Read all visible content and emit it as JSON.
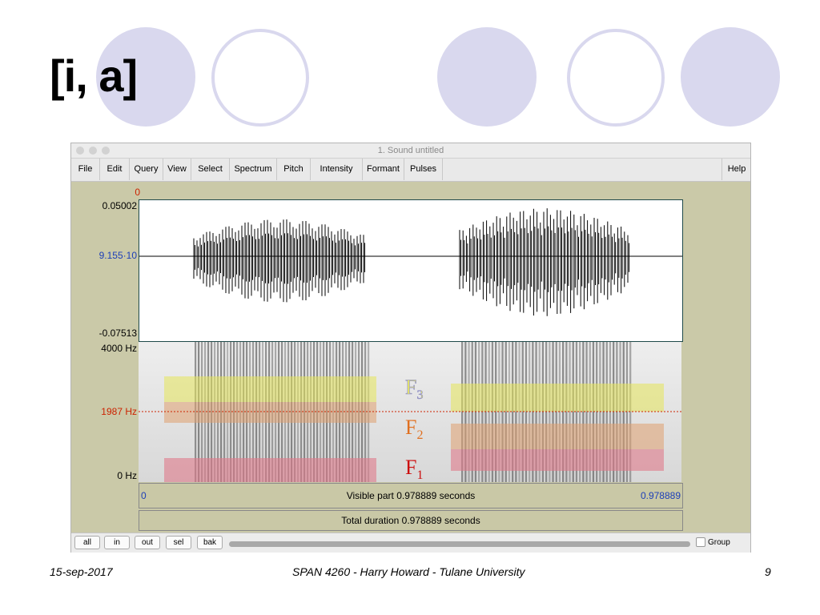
{
  "slide": {
    "title": "[i, a]",
    "footer_left": "15-sep-2017",
    "footer_center": "SPAN 4260 - Harry Howard - Tulane University",
    "footer_right": "9"
  },
  "window": {
    "title": "1. Sound untitled",
    "menu": [
      "File",
      "Edit",
      "Query",
      "View",
      "Select",
      "Spectrum",
      "Pitch",
      "Intensity",
      "Formant",
      "Pulses",
      "Help"
    ],
    "time_cursor": "0",
    "waveform": {
      "max": "0.05002",
      "mid": "9.155·10",
      "min": "-0.07513"
    },
    "spectrogram": {
      "top": "4000 Hz",
      "cursor": "1987 Hz",
      "bottom": "0 Hz"
    },
    "formants": {
      "f3": "F",
      "f3_sub": "3",
      "f2": "F",
      "f2_sub": "2",
      "f1": "F",
      "f1_sub": "1"
    },
    "visible": {
      "start": "0",
      "label": "Visible part 0.978889 seconds",
      "end": "0.978889"
    },
    "total": "Total duration 0.978889 seconds",
    "buttons": [
      "all",
      "in",
      "out",
      "sel",
      "bak"
    ],
    "group_label": "Group"
  },
  "colors": {
    "circle": "#d9d8ee",
    "f3_band": "#e6e65a",
    "f2_band": "#e0a070",
    "f1_band": "#e07a8a",
    "label_red": "#cc2200",
    "label_blue": "#1d3fb8"
  }
}
